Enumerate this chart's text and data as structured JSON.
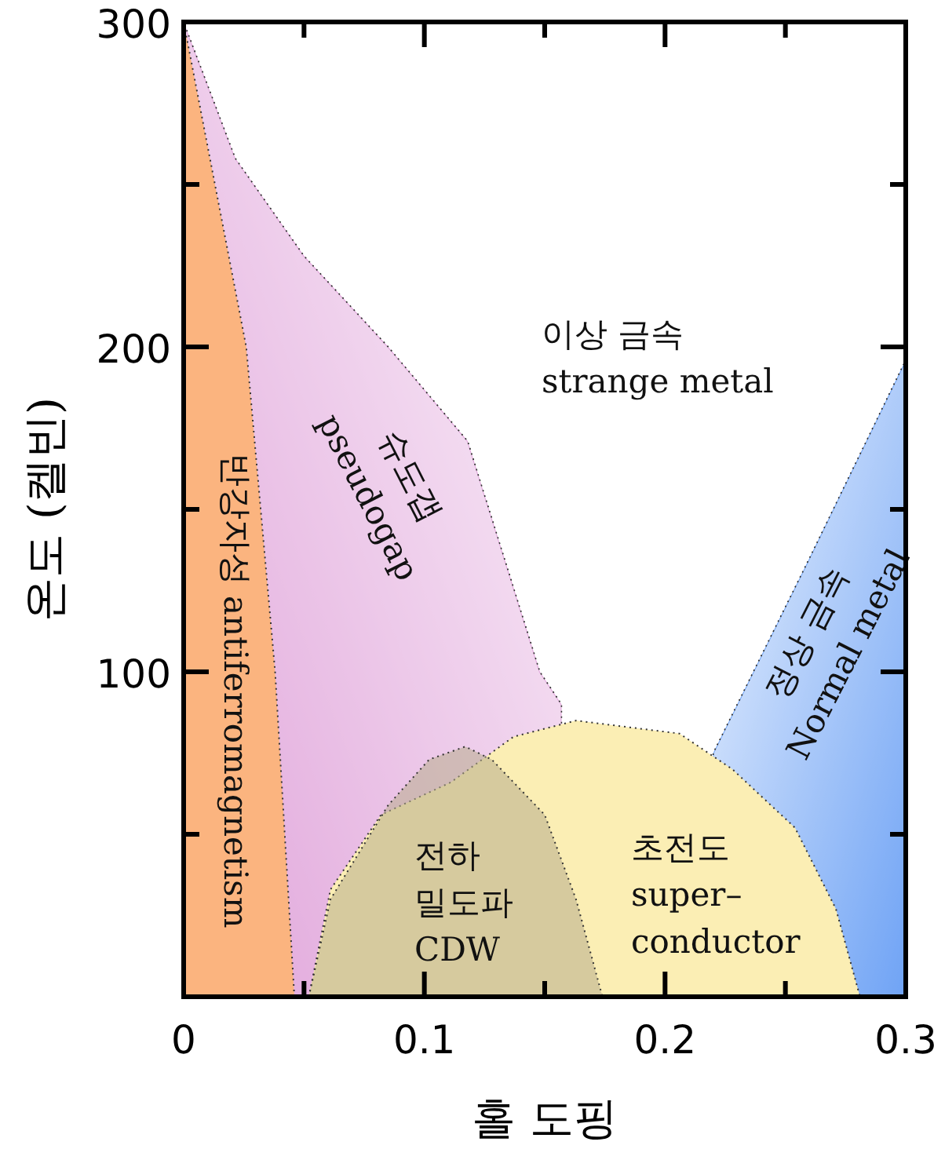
{
  "chart_data": {
    "type": "area",
    "xlabel": "홀 도핑",
    "ylabel": "온도 (켈빈)",
    "xlim": [
      0,
      0.3
    ],
    "ylim": [
      0,
      300
    ],
    "xticks": [
      0,
      {
        "value": 0.05,
        "label": null
      },
      0.1,
      {
        "value": 0.15,
        "label": null
      },
      0.2,
      {
        "value": 0.25,
        "label": null
      },
      0.3
    ],
    "yticks": [
      {
        "value": 50,
        "label": null
      },
      100,
      {
        "value": 150,
        "label": null
      },
      200,
      {
        "value": 250,
        "label": null
      },
      300
    ],
    "line_style": "dotted",
    "grid": false,
    "series": [
      {
        "color": "#e0a3da",
        "x": [
          0,
          0.0215,
          0.05,
          0.085,
          0.118,
          0.148,
          0.157
        ],
        "values": [
          300,
          258,
          228,
          200,
          171,
          100,
          90
        ]
      },
      {
        "color": "#fbb47f",
        "x": [
          0,
          0.013,
          0.026,
          0.038,
          0.046
        ],
        "values": [
          300,
          250,
          200,
          100,
          0
        ]
      },
      {
        "color": "#6fa3f5",
        "x": [
          0.22,
          0.26,
          0.3
        ],
        "values": [
          75,
          135,
          196
        ]
      },
      {
        "color": "#fbeeb4",
        "x": [
          0.052,
          0.061,
          0.082,
          0.111,
          0.137,
          0.163,
          0.206,
          0.228,
          0.254,
          0.271,
          0.281
        ],
        "values": [
          0,
          33,
          56,
          66,
          80,
          85,
          81,
          70,
          52,
          27,
          0
        ]
      },
      {
        "color": "#b8ad8c",
        "x": [
          0.052,
          0.061,
          0.085,
          0.102,
          0.117,
          0.128,
          0.15,
          0.163,
          0.174
        ],
        "values": [
          0,
          30,
          59,
          73,
          77,
          73,
          56,
          30,
          0
        ]
      }
    ],
    "annotations": [
      "이상 금속\nstrange metal",
      "슈도갭\npseudogap",
      "반강자성 antiferromagnetism",
      "정상 금속\nNormal metal",
      "전하\n밀도파\nCDW",
      "초전도\nsuper–\nconductor"
    ]
  }
}
